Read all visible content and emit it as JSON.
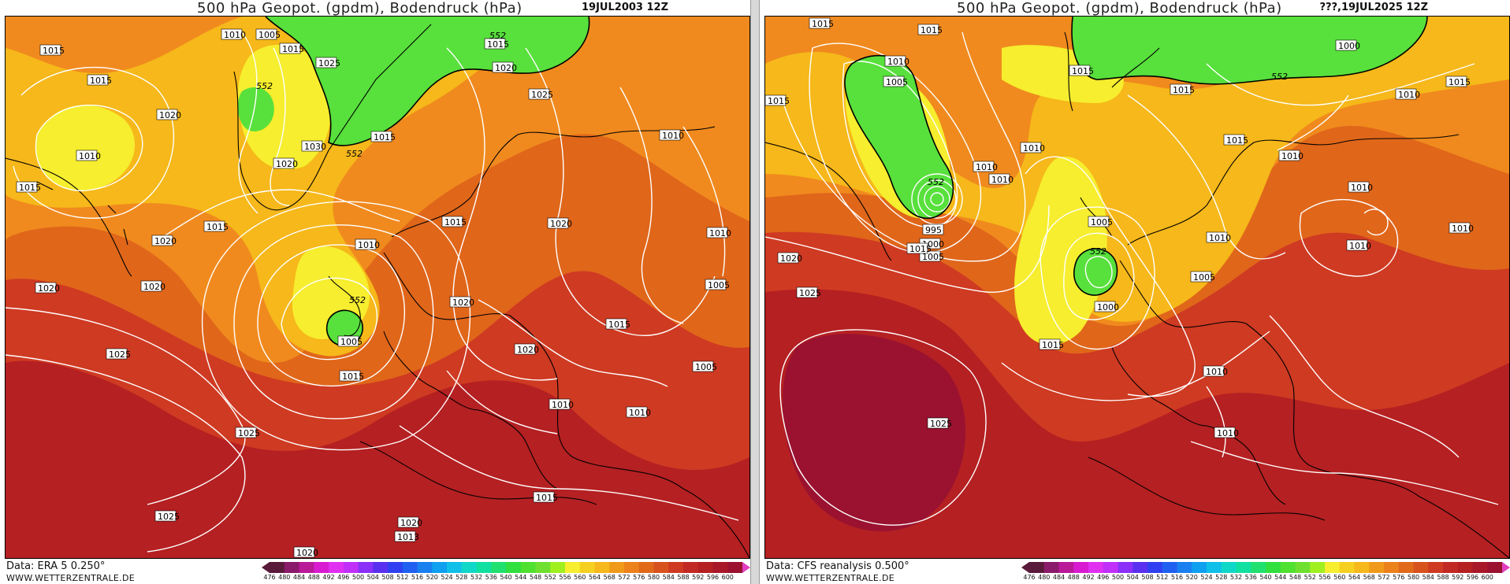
{
  "colors": {
    "deep_green": "#2fd23a",
    "green": "#58e03c",
    "yellow": "#f6ee2e",
    "light_orange": "#f6b81a",
    "orange": "#f08a1e",
    "dark_orange": "#e0661a",
    "red": "#cf3a22",
    "dark_red": "#b52022",
    "maroon": "#9a1230",
    "isobar": "#ffffff",
    "coast": "#000000"
  },
  "colorbar": {
    "labels": [
      "476",
      "480",
      "484",
      "488",
      "492",
      "496",
      "500",
      "504",
      "508",
      "512",
      "516",
      "520",
      "524",
      "528",
      "532",
      "536",
      "540",
      "544",
      "548",
      "552",
      "556",
      "560",
      "564",
      "568",
      "572",
      "576",
      "580",
      "584",
      "588",
      "592",
      "596",
      "600"
    ],
    "colors": [
      "#5a1a3a",
      "#8a1a6a",
      "#b81a98",
      "#d81ad0",
      "#e030f0",
      "#c030f8",
      "#8a30f8",
      "#5a30f0",
      "#3040f0",
      "#2060f0",
      "#1a80f0",
      "#10a0f0",
      "#10c0e8",
      "#10d8c8",
      "#10e0a0",
      "#20e070",
      "#30e040",
      "#50e030",
      "#70e030",
      "#a0f020",
      "#f6ee2e",
      "#f6d020",
      "#f6b81a",
      "#f09a1a",
      "#ec821c",
      "#e06a1a",
      "#d8521e",
      "#cf3a22",
      "#c22824",
      "#b52022",
      "#a81828",
      "#9a1230"
    ]
  },
  "panels": [
    {
      "title": "500 hPa Geopot. (gpdm), Bodendruck (hPa)",
      "datetime": "19JUL2003 12Z",
      "source": "Data: ERA 5 0.250°",
      "site": "WWW.WETTERZENTRALE.DE",
      "isobar_labels": [
        "1015",
        "1010",
        "1005",
        "1015",
        "1020",
        "1025",
        "1015",
        "1030",
        "1020",
        "1015",
        "1015",
        "1020",
        "1010",
        "1015",
        "1010",
        "1020",
        "1025",
        "1015",
        "1010",
        "1020",
        "1015",
        "1020",
        "1020",
        "1025",
        "1020",
        "1010",
        "1005",
        "1015",
        "1015",
        "1020",
        "1005",
        "1010",
        "1005",
        "1010",
        "1025",
        "1025",
        "1015",
        "1020",
        "1013",
        "1020"
      ],
      "gp_labels": [
        "552",
        "552",
        "552",
        "552"
      ]
    },
    {
      "title": "500 hPa Geopot. (gpdm), Bodendruck (hPa)",
      "datetime": "???,19JUL2025 12Z",
      "source": "Data: CFS reanalysis 0.500°",
      "site": "WWW.WETTERZENTRALE.DE",
      "isobar_labels": [
        "1015",
        "1015",
        "1010",
        "1005",
        "1015",
        "1000",
        "1015",
        "1015",
        "1010",
        "1015",
        "1010",
        "1010",
        "1015",
        "1010",
        "995",
        "1000",
        "1005",
        "1005",
        "1010",
        "1010",
        "1010",
        "1015",
        "1020",
        "1005",
        "1010",
        "1000",
        "1010",
        "1025",
        "1015",
        "1010",
        "1025",
        "1010"
      ],
      "gp_labels": [
        "552",
        "552",
        "552"
      ]
    }
  ]
}
